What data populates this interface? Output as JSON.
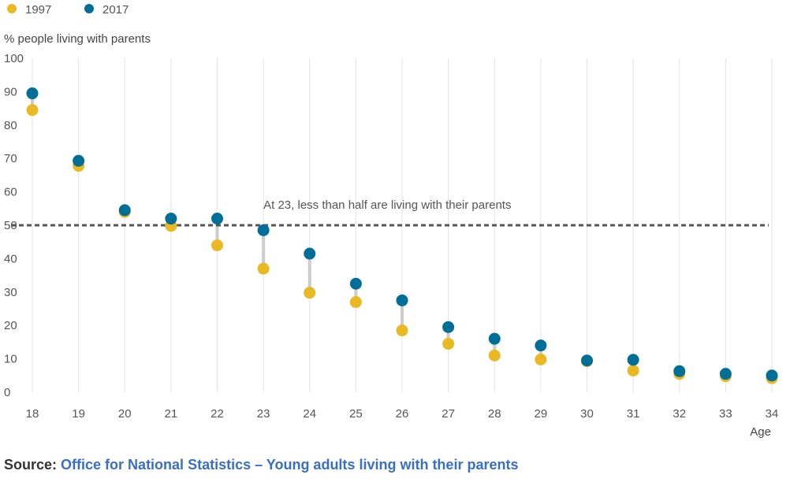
{
  "chart_data": {
    "type": "dot-plot",
    "ylabel": "% people living with parents",
    "xlabel": "Age",
    "ylim": [
      0,
      100
    ],
    "yticks": [
      0,
      10,
      20,
      30,
      40,
      50,
      60,
      70,
      80,
      90,
      100
    ],
    "categories": [
      18,
      19,
      20,
      21,
      22,
      23,
      24,
      25,
      26,
      27,
      28,
      29,
      30,
      31,
      32,
      33,
      34
    ],
    "series": [
      {
        "name": "1997",
        "color": "#e8b923",
        "values": [
          84.5,
          67.8,
          54.0,
          49.8,
          44.0,
          37.0,
          29.8,
          27.0,
          18.5,
          14.5,
          11.0,
          9.8,
          9.3,
          6.5,
          5.5,
          4.8,
          4.2
        ]
      },
      {
        "name": "2017",
        "color": "#006f97",
        "values": [
          89.5,
          69.3,
          54.5,
          52.0,
          52.0,
          48.5,
          41.5,
          32.5,
          27.5,
          19.5,
          16.0,
          14.0,
          9.5,
          9.7,
          6.3,
          5.5,
          5.0
        ]
      }
    ],
    "reference_line": {
      "value": 50,
      "style": "dotted",
      "color": "#555555"
    },
    "annotation": {
      "text": "At 23, less than half are living with their parents",
      "x": 23,
      "y": 50
    },
    "grid": {
      "x": true,
      "y": false
    },
    "legend": "top-left"
  },
  "source": {
    "prefix": "Source:",
    "text": "Office for National Statistics – Young adults living with their parents"
  }
}
